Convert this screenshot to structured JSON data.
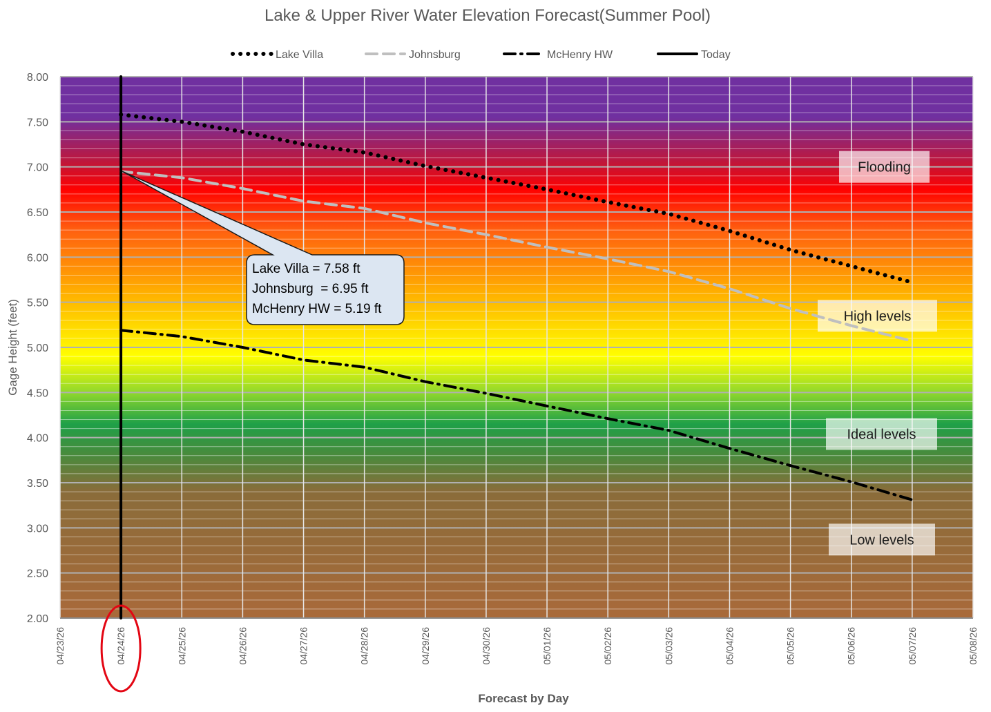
{
  "chart_data": {
    "type": "line",
    "title": "Lake & Upper River Water Elevation Forecast(Summer Pool)",
    "xlabel": "Forecast by Day",
    "ylabel": "Gage Height (feet)",
    "ylim": [
      2.0,
      8.0
    ],
    "yticks": [
      "2.00",
      "2.50",
      "3.00",
      "3.50",
      "4.00",
      "4.50",
      "5.00",
      "5.50",
      "6.00",
      "6.50",
      "7.00",
      "7.50",
      "8.00"
    ],
    "x_categories": [
      "04/23/26",
      "04/24/26",
      "04/25/26",
      "04/26/26",
      "04/27/26",
      "04/28/26",
      "04/29/26",
      "04/30/26",
      "05/01/26",
      "05/02/26",
      "05/03/26",
      "05/04/26",
      "05/05/26",
      "05/06/26",
      "05/07/26",
      "05/08/26"
    ],
    "grid": true,
    "legend_position": "top-center",
    "series": [
      {
        "name": "Lake Villa",
        "style": "dotted",
        "color": "#000000",
        "x": [
          "04/24/26",
          "04/25/26",
          "04/26/26",
          "04/27/26",
          "04/28/26",
          "04/29/26",
          "04/30/26",
          "05/01/26",
          "05/02/26",
          "05/03/26",
          "05/04/26",
          "05/05/26",
          "05/06/26",
          "05/07/26"
        ],
        "values": [
          7.58,
          7.5,
          7.39,
          7.25,
          7.16,
          7.01,
          6.88,
          6.75,
          6.61,
          6.48,
          6.29,
          6.08,
          5.9,
          5.72
        ]
      },
      {
        "name": "Johnsburg",
        "style": "dashed",
        "color": "#bfbfbf",
        "x": [
          "04/24/26",
          "04/25/26",
          "04/26/26",
          "04/27/26",
          "04/28/26",
          "04/29/26",
          "04/30/26",
          "05/01/26",
          "05/02/26",
          "05/03/26",
          "05/04/26",
          "05/05/26",
          "05/06/26",
          "05/07/26"
        ],
        "values": [
          6.95,
          6.88,
          6.76,
          6.62,
          6.54,
          6.38,
          6.25,
          6.11,
          5.98,
          5.84,
          5.65,
          5.43,
          5.24,
          5.07
        ]
      },
      {
        "name": "McHenry HW",
        "style": "dash-dot",
        "color": "#000000",
        "x": [
          "04/24/26",
          "04/25/26",
          "04/26/26",
          "04/27/26",
          "04/28/26",
          "04/29/26",
          "04/30/26",
          "05/01/26",
          "05/02/26",
          "05/03/26",
          "05/04/26",
          "05/05/26",
          "05/06/26",
          "05/07/26"
        ],
        "values": [
          5.19,
          5.12,
          5.0,
          4.86,
          4.78,
          4.62,
          4.49,
          4.35,
          4.21,
          4.08,
          3.88,
          3.69,
          3.51,
          3.31
        ]
      },
      {
        "name": "Today",
        "style": "solid",
        "color": "#000000",
        "x": [
          "04/24/26",
          "04/24/26"
        ],
        "values": [
          2.0,
          8.0
        ]
      }
    ],
    "today_marker": {
      "x": "04/24/26",
      "circle_color": "#e30613"
    },
    "callout": {
      "lines": [
        "Lake Villa = 7.58 ft",
        "Johnsburg  = 6.95 ft",
        "McHenry HW = 5.19 ft"
      ],
      "points_to": {
        "x": "04/24/26",
        "y": 6.95
      }
    },
    "zones": [
      {
        "label": "Flooding",
        "y": 7.0
      },
      {
        "label": "High levels",
        "y": 5.35
      },
      {
        "label": "Ideal levels",
        "y": 4.04
      },
      {
        "label": "Low levels",
        "y": 2.87
      }
    ],
    "background_gradient": [
      {
        "y": 8.0,
        "color": "#7030a0"
      },
      {
        "y": 7.55,
        "color": "#7030a0"
      },
      {
        "y": 7.05,
        "color": "#c0163a"
      },
      {
        "y": 6.75,
        "color": "#ff0000"
      },
      {
        "y": 6.3,
        "color": "#ff6010"
      },
      {
        "y": 5.6,
        "color": "#ffb000"
      },
      {
        "y": 4.9,
        "color": "#ffff00"
      },
      {
        "y": 4.5,
        "color": "#90d82c"
      },
      {
        "y": 4.15,
        "color": "#1fa048"
      },
      {
        "y": 3.8,
        "color": "#4a8a3c"
      },
      {
        "y": 3.4,
        "color": "#8a6c3a"
      },
      {
        "y": 2.0,
        "color": "#a96a3a"
      }
    ]
  }
}
